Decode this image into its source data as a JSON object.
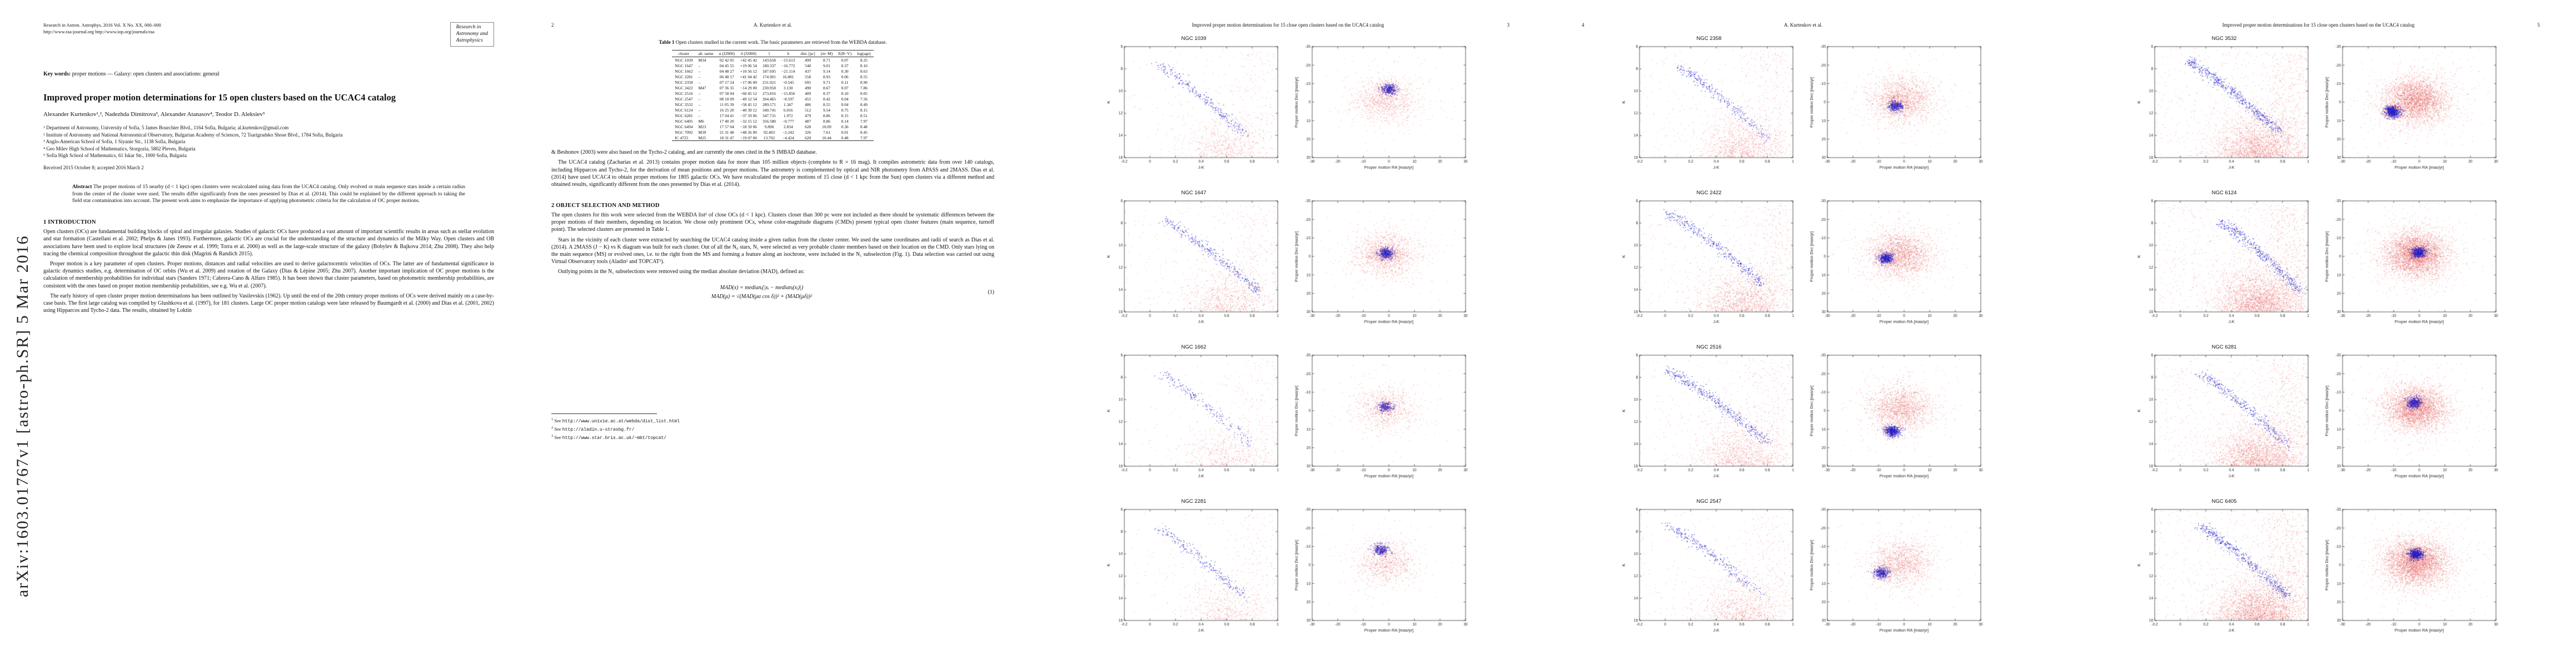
{
  "page1": {
    "journal_line1": "Research in Astron. Astrophys. 2016 Vol. X No. XX, 000–000",
    "journal_line2": "http://www.raa-journal.org    http://www.iop.org/journals/raa",
    "logo_lines": [
      "Research in",
      "Astronomy and",
      "Astrophysics"
    ],
    "keywords_label": "Key words:",
    "keywords_text": " proper motions — Galaxy: open clusters and associations: general",
    "title": "Improved proper motion determinations for 15 open clusters based on the UCAC4 catalog",
    "authors": "Alexander Kurtenkov¹,², Nadezhda Dimitrova³, Alexander Atanasov⁴, Teodor D. Aleksiev⁵",
    "affiliations": [
      "¹ Department of Astronomy, University of Sofia, 5 James Bourchier Blvd., 1164 Sofia, Bulgaria; al.kurtenkov@gmail.com",
      "² Institute of Astronomy and National Astronomical Observatory, Bulgarian Academy of Sciences, 72 Tsarigradsko Shose Blvd., 1784 Sofia, Bulgaria",
      "³ Anglo-American School of Sofia, 1 Siyanie Str., 1138 Sofia, Bulgaria",
      "⁴ Geo Milev High School of Mathematics, Storgozia, 5802 Pleven, Bulgaria",
      "⁵ Sofia High School of Mathematics, 61 Iskar Str., 1000 Sofia, Bulgaria"
    ],
    "received": "Received 2015 October 8; accepted 2016 March 2",
    "abstract_label": "Abstract",
    "abstract_text": "The proper motions of 15 nearby (d < 1 kpc) open clusters were recalculated using data from the UCAC4 catalog. Only evolved or main sequence stars inside a certain radius from the center of the cluster were used. The results differ significantly from the ones presented by Dias et al. (2014). This could be explained by the different approach to taking the field star contamination into account. The present work aims to emphasize the importance of applying photometric criteria for the calculation of OC proper motions.",
    "section1_heading": "1 INTRODUCTION",
    "intro_paragraphs": [
      "Open clusters (OCs) are fundamental building blocks of spiral and irregular galaxies. Studies of galactic OCs have produced a vast amount of important scientific results in areas such as stellar evolution and star formation (Castellani et al. 2002; Phelps & Janes 1993). Furthermore, galactic OCs are crucial for the understanding of the structure and dynamics of the Milky Way. Open clusters and OB associations have been used to explore local structures (de Zeeuw et al. 1999; Torra et al. 2000) as well as the large-scale structure of the galaxy (Bobylev & Bajkova 2014; Zhu 2008). They also help tracing the chemical composition throughout the galactic thin disk (Magrini & Randich 2015).",
      "Proper motion is a key parameter of open clusters. Proper motions, distances and radial velocities are used to derive galactocentric velocities of OCs. The latter are of fundamental significance in galactic dynamics studies, e.g. determination of OC orbits (Wu et al. 2009) and rotation of the Galaxy (Dias & Lépine 2005; Zhu 2007). Another important implication of OC proper motions is the calculation of membership probabilities for individual stars (Sanders 1971; Cabrera-Cano & Alfaro 1985). It has been shown that cluster parameters, based on photometric membership probabilities, are consistent with the ones based on proper motion membership probabilities, see e.g. Wu et al. (2007).",
      "The early history of open cluster proper motion determinations has been outlined by Vasilevskis (1962). Up until the end of the 20th century proper motions of OCs were derived mainly on a case-by-case basis. The first large catalog was compiled by Glushkova et al. (1997), for 181 clusters. Large OC proper motion catalogs were later released by Baumgardt et al. (2000) and Dias et al. (2001, 2002) using Hipparcos and Tycho-2 data. The results, obtained by Loktin"
    ],
    "arxiv_stamp": "arXiv:1603.01767v1  [astro-ph.SR]  5 Mar 2016"
  },
  "page2": {
    "page_number": "2",
    "running_author": "A. Kurtenkov et al.",
    "table_label": "Table 1",
    "table_caption": "  Open clusters studied in the current work. The basic parameters are retrieved from the WEBDA database.",
    "table": {
      "columns": [
        "cluster",
        "alt. name",
        "α (J2000)",
        "δ (J2000)",
        "l",
        "b",
        "dist. [pc]",
        "(m−M)",
        "E(B−V)",
        "log(age)"
      ],
      "rows": [
        [
          "NGC 1039",
          "M34",
          "02 42 05",
          "+42 45 42",
          "143.658",
          "−15.613",
          "499",
          "8.71",
          "0.07",
          "8.25"
        ],
        [
          "NGC 1647",
          "–",
          "04 45 55",
          "+19 06 54",
          "180.337",
          "−16.772",
          "540",
          "9.01",
          "0.37",
          "8.16"
        ],
        [
          "NGC 1662",
          "–",
          "04 48 27",
          "+10 56 12",
          "187.695",
          "−21.114",
          "437",
          "9.14",
          "0.30",
          "8.63"
        ],
        [
          "NGC 2281",
          "–",
          "06 48 17",
          "+41 04 42",
          "174.901",
          "16.881",
          "558",
          "8.93",
          "0.06",
          "8.55"
        ],
        [
          "NGC 2358",
          "–",
          "07 17 24",
          "−17 06 00",
          "231.921",
          "−0.545",
          "695",
          "9.71",
          "0.11",
          "8.90"
        ],
        [
          "NGC 2422",
          "M47",
          "07 36 35",
          "−14 29 00",
          "230.958",
          "3.130",
          "490",
          "8.67",
          "0.07",
          "7.86"
        ],
        [
          "NGC 2516",
          "–",
          "07 58 04",
          "−60 45 12",
          "273.816",
          "−15.856",
          "409",
          "8.37",
          "0.10",
          "8.05"
        ],
        [
          "NGC 2547",
          "–",
          "08 10 09",
          "−49 12 54",
          "264.465",
          "−8.597",
          "455",
          "8.42",
          "0.04",
          "7.56"
        ],
        [
          "NGC 3532",
          "–",
          "11 05 39",
          "−58 45 12",
          "289.571",
          "1.347",
          "486",
          "8.55",
          "0.04",
          "8.49"
        ],
        [
          "NGC 6124",
          "–",
          "16 25 20",
          "−40 39 12",
          "340.741",
          "6.016",
          "512",
          "9.54",
          "0.75",
          "8.15"
        ],
        [
          "NGC 6281",
          "–",
          "17 04 41",
          "−37 59 06",
          "347.731",
          "1.972",
          "479",
          "8.86",
          "0.15",
          "8.51"
        ],
        [
          "NGC 6405",
          "M6",
          "17 40 20",
          "−32 15 12",
          "356.580",
          "−0.777",
          "487",
          "8.86",
          "0.14",
          "7.97"
        ],
        [
          "NGC 6494",
          "M23",
          "17 57 04",
          "−18 59 06",
          "9.890",
          "2.834",
          "628",
          "10.09",
          "0.36",
          "8.48"
        ],
        [
          "NGC 7092",
          "M39",
          "21 31 48",
          "+48 26 00",
          "92.403",
          "−2.242",
          "326",
          "7.61",
          "0.01",
          "8.45"
        ],
        [
          "IC 4725",
          "M25",
          "18 31 47",
          "−19 07 00",
          "13.702",
          "−4.424",
          "620",
          "10.44",
          "0.48",
          "7.97"
        ]
      ]
    },
    "paragraphs": [
      {
        "text": "& Beshonov (2003) were also based on the Tycho-2 catalog, and are currently the ones cited in the S IMBAD database.",
        "indent": false
      },
      {
        "text": "The UCAC4 catalog (Zacharias et al. 2013) contains proper motion data for more than 105 million objects (complete to R = 16 mag). It compiles astrometric data from over 140 catalogs, including Hipparcos and Tycho-2, for the derivation of mean positions and proper motions. The astrometry is complemented by optical and NIR photometry from APASS and 2MASS. Dias et al. (2014) have used UCAC4 to obtain proper motions for 1805 galactic OCs. We have recalculated the proper motions of 15 close (d < 1 kpc from the Sun) open clusters via a different method and obtained results, significantly different from the ones presented by Dias et al. (2014).",
        "indent": true
      }
    ],
    "section2_heading": "2 OBJECT SELECTION AND METHOD",
    "method_paragraphs": [
      {
        "text": "The open clusters for this work were selected from the WEBDA list¹ of close OCs (d < 1 kpc). Clusters closer than 300 pc were not included as there should be systematic differences between the proper motions of their members, depending on location. We chose only prominent OCs, whose color-magnitude diagrams (CMDs) present typical open cluster features (main sequence, turnoff point). The selected clusters are presented in Table 1.",
        "indent": false
      },
      {
        "text": "Stars in the vicinity of each cluster were extracted by searching the UCAC4 catalog inside a given radius from the cluster center. We used the same coordinates and radii of search as Dias et al. (2014). A 2MASS (J − K) vs K diagram was built for each cluster. Out of all the N₀ stars, N₁ were selected as very probable cluster members based on their location on the CMD. Only stars lying on the main sequence (MS) or evolved ones, i.e. to the right from the MS and forming a feature along an isochrone, were included in the N₁ subselection (Fig. 1). Data selection was carried out using Virtual Observatory tools (Aladin² and TOPCAT³).",
        "indent": true
      },
      {
        "text": "Outlying points in the N₁ subselections were removed using the median absolute deviation (MAD), defined as:",
        "indent": true
      }
    ],
    "equation": {
      "line1": "MAD(x) = medianᵢ(|xᵢ − medianⱼ(xⱼ)|)",
      "line2": "MAD(μ) = √(MAD(μα cos δ))² + (MAD(μδ))²",
      "number": "(1)"
    },
    "footnotes": [
      {
        "marker": "1",
        "prefix": "See ",
        "url": "http://www.univie.ac.at/webda/dist_list.html"
      },
      {
        "marker": "2",
        "prefix": "See ",
        "url": "http://aladin.u-strasbg.fr/"
      },
      {
        "marker": "3",
        "prefix": "See ",
        "url": "http://www.star.bris.ac.uk/~mbt/topcat/"
      }
    ]
  },
  "page3": {
    "page_number": "3",
    "running_title": "Improved proper motion determinations for 15 close open clusters based on the UCAC4 catalog"
  },
  "page4": {
    "page_number": "4",
    "running_author": "A. Kurtenkov et al."
  },
  "page5": {
    "page_number": "5",
    "running_title": "Improved proper motion determinations for 15 close open clusters based on the UCAC4 catalog"
  },
  "figure_axes": {
    "cmd": {
      "xlabel": "J-K",
      "ylabel": "K",
      "xticks": [
        "-0.2",
        "0",
        "0.2",
        "0.4",
        "0.6",
        "0.8",
        "1"
      ],
      "yticks": [
        "6",
        "8",
        "10",
        "12",
        "14",
        "16"
      ],
      "xlim": [
        -0.2,
        1
      ],
      "ylim_top": 6,
      "ylim_bottom": 16,
      "y_inverted": true
    },
    "pm": {
      "xlabel": "Proper motion RA [mas/yr]",
      "ylabel": "Proper motion Dec [mas/yr]",
      "xticks": [
        "-30",
        "-20",
        "-10",
        "0",
        "10",
        "20",
        "30"
      ],
      "yticks": [
        "-30",
        "-20",
        "-10",
        "0",
        "10",
        "20",
        "30"
      ],
      "xlim": [
        -30,
        30
      ],
      "ylim_top": -30,
      "ylim_bottom": 30,
      "y_inverted": true
    },
    "field_color": "#e45a5a",
    "member_color": "#1f1fc8"
  },
  "chart_data": [
    {
      "type": "scatter_pair",
      "name": "NGC 1039",
      "page": 3,
      "seed": 1,
      "n_field": 1100,
      "n_members": 250,
      "ms_jk": [
        0.05,
        0.75
      ],
      "ms_k_top": 7.6,
      "pm_center": [
        0.1,
        -7.0
      ]
    },
    {
      "type": "scatter_pair",
      "name": "NGC 1647",
      "page": 3,
      "seed": 2,
      "n_field": 1500,
      "n_members": 300,
      "ms_jk": [
        0.12,
        0.85
      ],
      "ms_k_top": 7.8,
      "pm_center": [
        -1.1,
        -1.7
      ]
    },
    {
      "type": "scatter_pair",
      "name": "NGC 1662",
      "page": 3,
      "seed": 3,
      "n_field": 900,
      "n_members": 180,
      "ms_jk": [
        0.08,
        0.78
      ],
      "ms_k_top": 7.6,
      "pm_center": [
        -1.2,
        -2.0
      ]
    },
    {
      "type": "scatter_pair",
      "name": "NGC 2281",
      "page": 3,
      "seed": 4,
      "n_field": 950,
      "n_members": 220,
      "ms_jk": [
        0.05,
        0.75
      ],
      "ms_k_top": 7.6,
      "pm_center": [
        -3.0,
        -8.3
      ]
    },
    {
      "type": "scatter_pair",
      "name": "NGC 2358",
      "page": 4,
      "seed": 5,
      "n_field": 1800,
      "n_members": 260,
      "ms_jk": [
        0.1,
        0.8
      ],
      "ms_k_top": 7.8,
      "pm_center": [
        -3.2,
        2.0
      ]
    },
    {
      "type": "scatter_pair",
      "name": "NGC 2422",
      "page": 4,
      "seed": 6,
      "n_field": 2300,
      "n_members": 350,
      "ms_jk": [
        0.02,
        0.78
      ],
      "ms_k_top": 7.2,
      "pm_center": [
        -7.1,
        1.0
      ]
    },
    {
      "type": "scatter_pair",
      "name": "NGC 2516",
      "page": 4,
      "seed": 7,
      "n_field": 1900,
      "n_members": 400,
      "ms_jk": [
        0.02,
        0.8
      ],
      "ms_k_top": 7.4,
      "pm_center": [
        -4.6,
        11.1
      ]
    },
    {
      "type": "scatter_pair",
      "name": "NGC 2547",
      "page": 4,
      "seed": 8,
      "n_field": 1500,
      "n_members": 260,
      "ms_jk": [
        0.0,
        0.75
      ],
      "ms_k_top": 7.3,
      "pm_center": [
        -8.6,
        4.3
      ]
    },
    {
      "type": "scatter_pair",
      "name": "NGC 3532",
      "page": 5,
      "seed": 9,
      "n_field": 3600,
      "n_members": 500,
      "ms_jk": [
        0.05,
        0.78
      ],
      "ms_k_top": 7.3,
      "pm_center": [
        -10.4,
        5.1
      ]
    },
    {
      "type": "scatter_pair",
      "name": "NGC 6124",
      "page": 5,
      "seed": 10,
      "n_field": 4200,
      "n_members": 420,
      "ms_jk": [
        0.3,
        0.95
      ],
      "ms_k_top": 7.8,
      "pm_center": [
        -0.2,
        -2.1
      ]
    },
    {
      "type": "scatter_pair",
      "name": "NGC 6281",
      "page": 5,
      "seed": 11,
      "n_field": 3600,
      "n_members": 320,
      "ms_jk": [
        0.15,
        0.85
      ],
      "ms_k_top": 7.7,
      "pm_center": [
        -1.9,
        -4.2
      ]
    },
    {
      "type": "scatter_pair",
      "name": "NGC 6405",
      "page": 5,
      "seed": 12,
      "n_field": 4200,
      "n_members": 450,
      "ms_jk": [
        0.15,
        0.85
      ],
      "ms_k_top": 7.5,
      "pm_center": [
        -1.3,
        -5.8
      ]
    }
  ]
}
